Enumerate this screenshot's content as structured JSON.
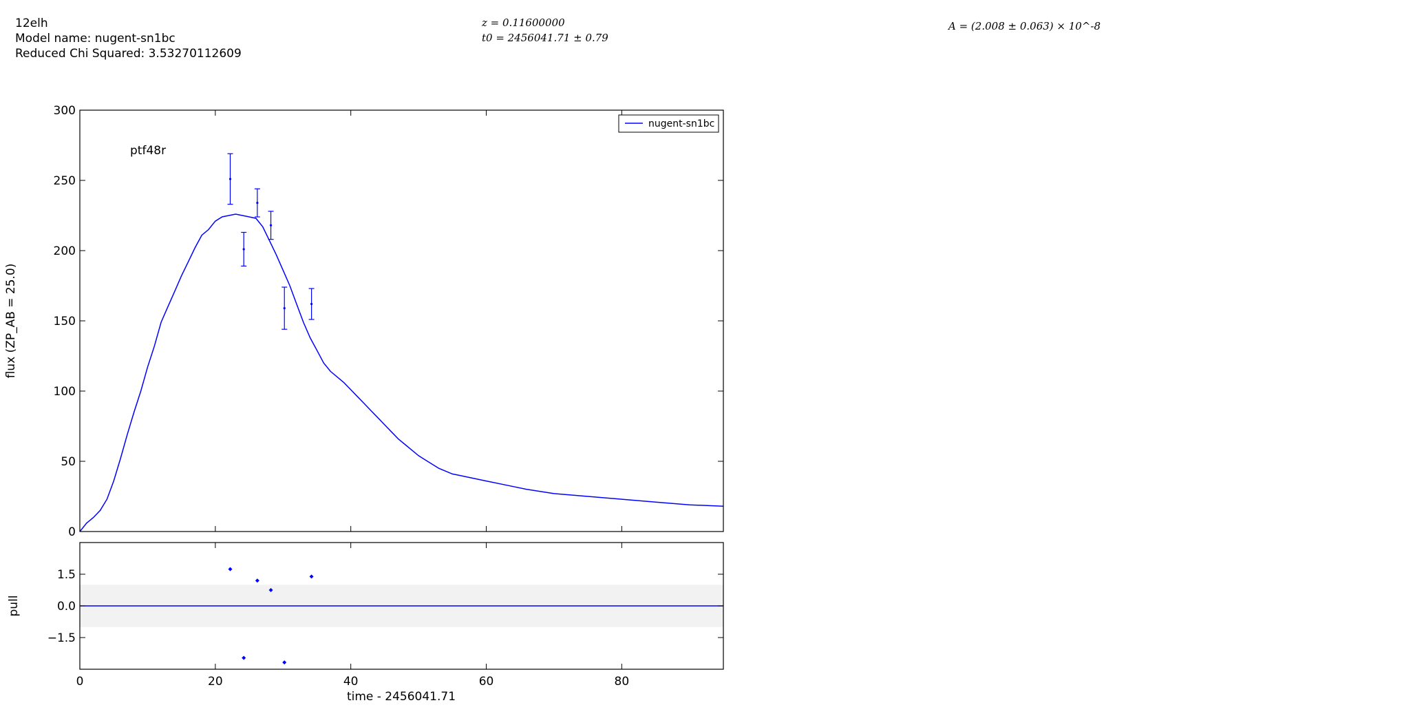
{
  "header": {
    "object_name": "12elh",
    "model_line": "Model name: nugent-sn1bc",
    "chi_line": "Reduced Chi Squared: 3.53270112609",
    "z_line": "z = 0.11600000",
    "t0_line": "t0 = 2456041.71 ± 0.79",
    "amp_line": "A = (2.008 ± 0.063) × 10^-8"
  },
  "chart_data": [
    {
      "type": "line",
      "band_label": "ptf48r",
      "ylabel": "flux (ZP_AB = 25.0)",
      "xlim": [
        0,
        95
      ],
      "ylim": [
        0,
        300
      ],
      "xticks": [
        0,
        20,
        40,
        60,
        80
      ],
      "yticks": [
        0,
        50,
        100,
        150,
        200,
        250,
        300
      ],
      "ytick_labels": [
        "0",
        "50",
        "100",
        "150",
        "200",
        "250",
        "300"
      ],
      "legend": {
        "placement": "top-right",
        "entries": [
          "nugent-sn1bc"
        ]
      },
      "model": {
        "name": "nugent-sn1bc",
        "color": "#0000ff",
        "x": [
          0,
          1,
          2,
          3,
          4,
          5,
          6,
          7,
          8,
          9,
          10,
          11,
          12,
          13,
          14,
          15,
          16,
          17,
          18,
          19,
          20,
          21,
          22,
          23,
          24,
          25,
          26,
          27,
          28,
          29,
          30,
          31,
          32,
          33,
          34,
          35,
          36,
          37,
          38,
          39,
          40,
          41,
          42,
          43,
          44,
          45,
          46,
          47,
          48,
          49,
          50,
          51,
          52,
          53,
          54,
          55,
          56,
          58,
          60,
          63,
          66,
          70,
          75,
          80,
          85,
          90,
          95
        ],
        "y": [
          0,
          6,
          10,
          15,
          23,
          36,
          52,
          69,
          85,
          100,
          117,
          132,
          149,
          160,
          171,
          182,
          192,
          202,
          211,
          215,
          221,
          224,
          225,
          226,
          225,
          224,
          223,
          217,
          207,
          197,
          186,
          175,
          162,
          149,
          138,
          129,
          120,
          114,
          110,
          106,
          101,
          96,
          91,
          86,
          81,
          76,
          71,
          66,
          62,
          58,
          54,
          51,
          48,
          45,
          43,
          41,
          40,
          38,
          36,
          33,
          30,
          27,
          25,
          23,
          21,
          19,
          18
        ]
      },
      "observations": {
        "color": "#0000ff",
        "x": [
          22.2,
          24.2,
          26.2,
          28.2,
          30.2,
          34.2
        ],
        "y": [
          251,
          201,
          234,
          218,
          159,
          162
        ],
        "yerr": [
          18,
          12,
          10,
          10,
          15,
          11
        ]
      }
    },
    {
      "type": "scatter",
      "xlabel": "time - 2456041.71",
      "ylabel": "pull",
      "xlim": [
        0,
        95
      ],
      "ylim": [
        -3,
        3
      ],
      "xticks": [
        0,
        20,
        40,
        60,
        80
      ],
      "xtick_labels": [
        "0",
        "20",
        "40",
        "60",
        "80"
      ],
      "yticks": [
        1.5,
        0.0,
        -1.5
      ],
      "ytick_labels": [
        "1.5",
        "0.0",
        "−1.5"
      ],
      "band": [
        -1,
        1
      ],
      "band_color": "#f2f2f2",
      "zero_line_color": "#0000ff",
      "points": {
        "color": "#0000ff",
        "x": [
          22.2,
          24.2,
          26.2,
          28.2,
          30.2,
          34.2
        ],
        "y": [
          1.74,
          -2.46,
          1.2,
          0.75,
          -2.68,
          1.39
        ]
      }
    }
  ]
}
